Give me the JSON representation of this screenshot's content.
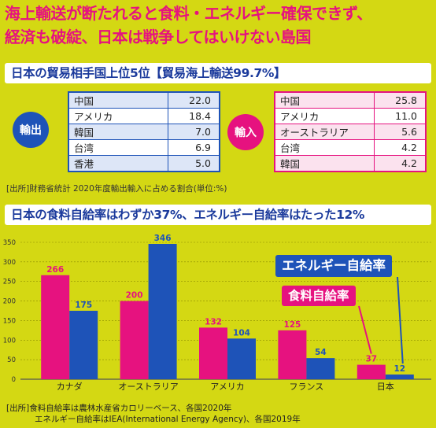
{
  "headline": {
    "line1": "海上輸送が断たれると食料・エネルギー確保できず、",
    "line2": "経済も破綻、日本は戦争してはいけない島国"
  },
  "trade": {
    "title": "日本の貿易相手国上位5位【貿易海上輸送99.7%】",
    "export_label": "輸出",
    "import_label": "輸入",
    "exports": [
      {
        "name": "中国",
        "value": "22.0"
      },
      {
        "name": "アメリカ",
        "value": "18.4"
      },
      {
        "name": "韓国",
        "value": "7.0"
      },
      {
        "name": "台湾",
        "value": "6.9"
      },
      {
        "name": "香港",
        "value": "5.0"
      }
    ],
    "imports": [
      {
        "name": "中国",
        "value": "25.8"
      },
      {
        "name": "アメリカ",
        "value": "11.0"
      },
      {
        "name": "オーストラリア",
        "value": "5.6"
      },
      {
        "name": "台湾",
        "value": "4.2"
      },
      {
        "name": "韓国",
        "value": "4.2"
      }
    ],
    "source": "[出所]財務省統計 2020年度輸出輸入に占める割合(単位:%)"
  },
  "self_sufficiency": {
    "title": "日本の食料自給率はわずか37%、エネルギー自給率はたった12%",
    "source_line1": "[出所]食料自給率は農林水産省カロリーベース、各国2020年",
    "source_line2": "エネルギー自給率はIEA(International Energy Agency)、各国2019年"
  },
  "colors": {
    "background": "#d4d813",
    "magenta": "#e6127f",
    "blue": "#1e53b8",
    "title_blue": "#1b3a9c"
  },
  "chart_data": {
    "type": "bar",
    "categories": [
      "カナダ",
      "オーストラリア",
      "アメリカ",
      "フランス",
      "日本"
    ],
    "series": [
      {
        "name": "食料自給率",
        "color": "#e6127f",
        "values": [
          266,
          200,
          132,
          125,
          37
        ]
      },
      {
        "name": "エネルギー自給率",
        "color": "#1e53b8",
        "values": [
          175,
          346,
          104,
          54,
          12
        ]
      }
    ],
    "ylim": [
      0,
      350
    ],
    "yticks": [
      0,
      50,
      100,
      150,
      200,
      250,
      300,
      350
    ],
    "grid": true,
    "legend": "callouts-right"
  }
}
